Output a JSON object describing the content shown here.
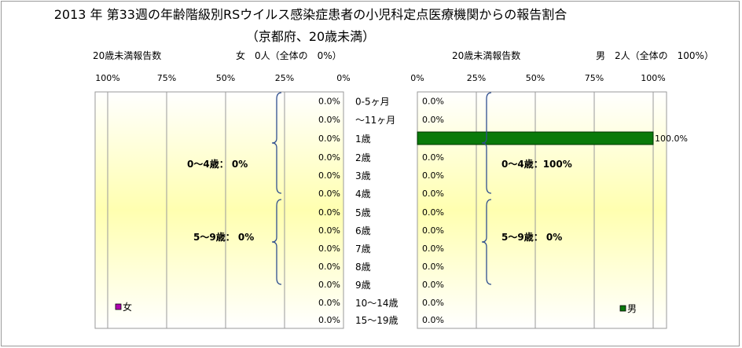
{
  "title_line1": "2013 年 第33週の年齢階級別RSウイルス感染症患者の小児科定点医療機関からの報告割合",
  "title_line2": "（京都府、20歳未満）",
  "left_panel": {
    "count_label": "20歳未満報告数",
    "summary": "女　0人（全体の　0%）",
    "legend": "女"
  },
  "right_panel": {
    "count_label": "20歳未満報告数",
    "summary": "男　2人（全体の　100%）",
    "legend": "男"
  },
  "colors": {
    "female": "#b000b0",
    "male_bar": "#0a7a0a",
    "male_bar_edge": "#003300",
    "panel_fade": "#ffffb0"
  },
  "chart_data": [
    {
      "type": "bar",
      "orientation": "horizontal",
      "direction": "reversed",
      "panel": "left",
      "categories": [
        "0-5ヶ月",
        "～11ヶ月",
        "1歳",
        "2歳",
        "3歳",
        "4歳",
        "5歳",
        "6歳",
        "7歳",
        "8歳",
        "9歳",
        "10～14歳",
        "15～19歳"
      ],
      "tick_labels": [
        "100%",
        "75%",
        "50%",
        "25%",
        "0%"
      ],
      "series": [
        {
          "name": "女",
          "values": [
            0,
            0,
            0,
            0,
            0,
            0,
            0,
            0,
            0,
            0,
            0,
            0,
            0
          ]
        }
      ],
      "data_labels": [
        "0.0%",
        "0.0%",
        "0.0%",
        "0.0%",
        "0.0%",
        "0.0%",
        "0.0%",
        "0.0%",
        "0.0%",
        "0.0%",
        "0.0%",
        "0.0%",
        "0.0%"
      ],
      "group_annotations": [
        "0～4歳：  0%",
        "5～9歳：  0%"
      ],
      "xlim": [
        0,
        100
      ],
      "grid": true,
      "legend_position": "bottom-left"
    },
    {
      "type": "bar",
      "orientation": "horizontal",
      "panel": "right",
      "categories": [
        "0-5ヶ月",
        "～11ヶ月",
        "1歳",
        "2歳",
        "3歳",
        "4歳",
        "5歳",
        "6歳",
        "7歳",
        "8歳",
        "9歳",
        "10～14歳",
        "15～19歳"
      ],
      "tick_labels": [
        "0%",
        "25%",
        "50%",
        "75%",
        "100%"
      ],
      "series": [
        {
          "name": "男",
          "values": [
            0,
            0,
            100,
            0,
            0,
            0,
            0,
            0,
            0,
            0,
            0,
            0,
            0
          ]
        }
      ],
      "data_labels": [
        "0.0%",
        "0.0%",
        "100.0%",
        "0.0%",
        "0.0%",
        "0.0%",
        "0.0%",
        "0.0%",
        "0.0%",
        "0.0%",
        "0.0%",
        "0.0%",
        "0.0%"
      ],
      "group_annotations": [
        "0～4歳：100%",
        "5～9歳：  0%"
      ],
      "xlim": [
        0,
        100
      ],
      "grid": true,
      "legend_position": "bottom-right"
    }
  ]
}
